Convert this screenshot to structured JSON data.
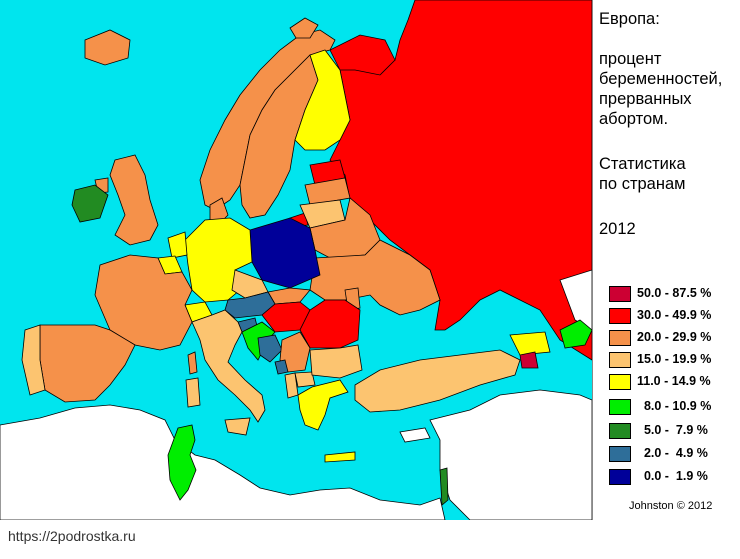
{
  "title": {
    "line1": "Европа:",
    "line2": "процент",
    "line3": "беременностей,",
    "line4": "прерванных",
    "line5": "абортом.",
    "line6": "Статистика",
    "line7": "по странам",
    "line8": "2012"
  },
  "legend": [
    {
      "label": "50.0 - 87.5 %",
      "color": "#cc0033"
    },
    {
      "label": "30.0 - 49.9 %",
      "color": "#ff0000"
    },
    {
      "label": "20.0 - 29.9 %",
      "color": "#f5914a"
    },
    {
      "label": "15.0 - 19.9 %",
      "color": "#fcc470"
    },
    {
      "label": "11.0 - 14.9 %",
      "color": "#ffff00"
    },
    {
      "label": "  8.0 - 10.9 %",
      "color": "#00ee00"
    },
    {
      "label": "  5.0 -  7.9 %",
      "color": "#228b22"
    },
    {
      "label": "  2.0 -  4.9 %",
      "color": "#2e6e99"
    },
    {
      "label": "  0.0 -  1.9 %",
      "color": "#000099"
    }
  ],
  "credit": "Johnston © 2012",
  "source_url": "https://2podrostka.ru",
  "colors": {
    "sea": "#00e5ee",
    "no_data": "#ffffff",
    "border": "#000000"
  },
  "regions": [
    {
      "name": "russia",
      "class": "30.0 - 49.9 %"
    },
    {
      "name": "belarus",
      "class": "20.0 - 29.9 %"
    },
    {
      "name": "ukraine",
      "class": "20.0 - 29.9 %"
    },
    {
      "name": "romania",
      "class": "30.0 - 49.9 %"
    },
    {
      "name": "hungary",
      "class": "30.0 - 49.9 %"
    },
    {
      "name": "poland",
      "class": "0.0 - 1.9 %"
    },
    {
      "name": "germany",
      "class": "11.0 - 14.9 %"
    },
    {
      "name": "france",
      "class": "20.0 - 29.9 %"
    },
    {
      "name": "spain",
      "class": "20.0 - 29.9 %"
    },
    {
      "name": "portugal",
      "class": "15.0 - 19.9 %"
    },
    {
      "name": "italy",
      "class": "15.0 - 19.9 %"
    },
    {
      "name": "uk",
      "class": "20.0 - 29.9 %"
    },
    {
      "name": "ireland",
      "class": "5.0 - 7.9 %"
    },
    {
      "name": "iceland",
      "class": "20.0 - 29.9 %"
    },
    {
      "name": "norway",
      "class": "20.0 - 29.9 %"
    },
    {
      "name": "sweden",
      "class": "20.0 - 29.9 %"
    },
    {
      "name": "finland",
      "class": "11.0 - 14.9 %"
    },
    {
      "name": "estonia",
      "class": "30.0 - 49.9 %"
    },
    {
      "name": "latvia",
      "class": "20.0 - 29.9 %"
    },
    {
      "name": "lithuania",
      "class": "15.0 - 19.9 %"
    },
    {
      "name": "austria",
      "class": "2.0 - 4.9 %"
    },
    {
      "name": "switzerland",
      "class": "11.0 - 14.9 %"
    },
    {
      "name": "czechia",
      "class": "15.0 - 19.9 %"
    },
    {
      "name": "bulgaria",
      "class": "15.0 - 19.9 %"
    },
    {
      "name": "greece",
      "class": "11.0 - 14.9 %"
    },
    {
      "name": "turkey",
      "class": "15.0 - 19.9 %"
    },
    {
      "name": "georgia",
      "class": "11.0 - 14.9 %"
    },
    {
      "name": "bosnia",
      "class": "2.0 - 4.9 %"
    },
    {
      "name": "croatia",
      "class": "8.0 - 10.9 %"
    },
    {
      "name": "tunisia",
      "class": "8.0 - 10.9 %"
    },
    {
      "name": "israel",
      "class": "5.0 - 7.9 %"
    }
  ]
}
